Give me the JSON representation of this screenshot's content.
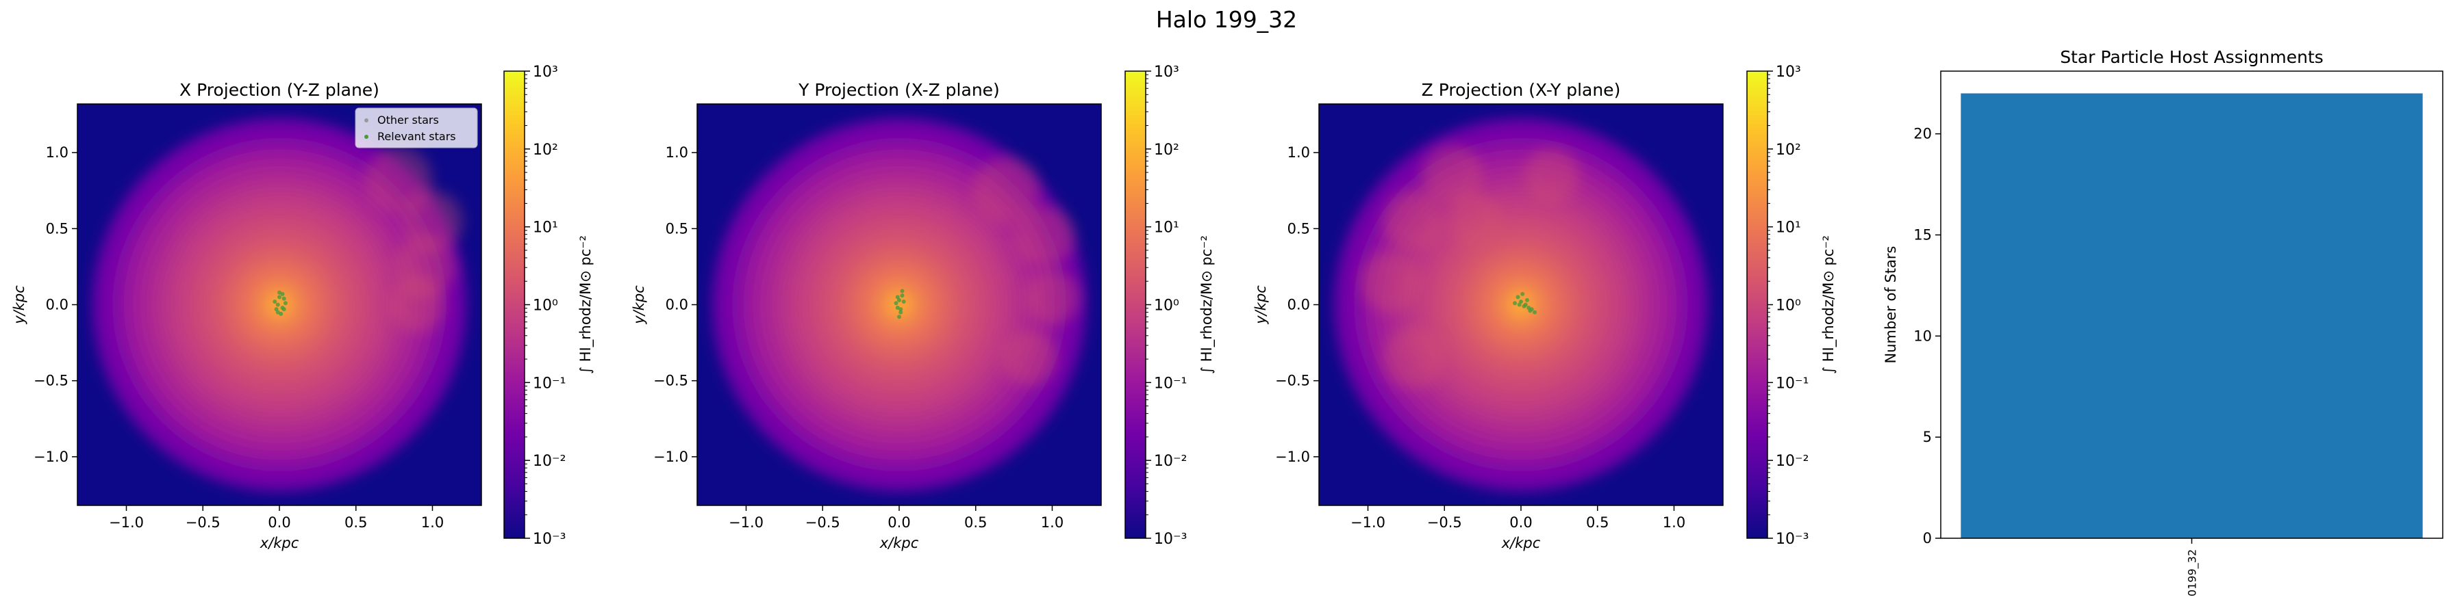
{
  "figure": {
    "suptitle": "Halo 199_32"
  },
  "colors": {
    "bar": "#1f77b4",
    "stars_relevant": "#4a9a3a",
    "stars_other": "#9a9a9a",
    "plasma": [
      "#0d0887",
      "#46039f",
      "#7201a8",
      "#9c179e",
      "#bd3786",
      "#d8576b",
      "#ed7953",
      "#fb9f3a",
      "#fdca26",
      "#f0f921"
    ]
  },
  "chart_data": [
    {
      "type": "heatmap",
      "title": "X Projection (Y-Z plane)",
      "xlabel": "x/kpc",
      "ylabel": "y/kpc",
      "xlim": [
        -1.32,
        1.32
      ],
      "ylim": [
        -1.32,
        1.32
      ],
      "xticks": [
        -1.0,
        -0.5,
        0.0,
        0.5,
        1.0
      ],
      "xtick_labels": [
        "−1.0",
        "−0.5",
        "0.0",
        "0.5",
        "1.0"
      ],
      "yticks": [
        -1.0,
        -0.5,
        0.0,
        0.5,
        1.0
      ],
      "ytick_labels": [
        "−1.0",
        "−0.5",
        "0.0",
        "0.5",
        "1.0"
      ],
      "colorbar": {
        "label": "∫ HI_rhodz/M⊙ pc⁻²",
        "scale": "log",
        "range": [
          0.001,
          1000
        ],
        "ticks": [
          0.001,
          0.01,
          0.1,
          1,
          10,
          100,
          1000
        ],
        "tick_labels": [
          "10⁻³",
          "10⁻²",
          "10⁻¹",
          "10⁰",
          "10¹",
          "10²",
          "10³"
        ]
      },
      "legend": {
        "placement": "upper-right",
        "entries": [
          "Other stars",
          "Relevant stars"
        ]
      },
      "stars": [
        [
          0.0,
          0.05
        ],
        [
          0.02,
          -0.02
        ],
        [
          -0.01,
          0.0
        ],
        [
          0.03,
          0.04
        ],
        [
          -0.02,
          -0.03
        ],
        [
          0.01,
          -0.06
        ],
        [
          0.0,
          0.08
        ],
        [
          0.04,
          0.01
        ],
        [
          -0.03,
          0.02
        ],
        [
          0.02,
          0.07
        ],
        [
          -0.01,
          -0.05
        ],
        [
          0.03,
          -0.03
        ]
      ]
    },
    {
      "type": "heatmap",
      "title": "Y Projection (X-Z plane)",
      "xlabel": "x/kpc",
      "ylabel": "y/kpc",
      "xlim": [
        -1.32,
        1.32
      ],
      "ylim": [
        -1.32,
        1.32
      ],
      "xticks": [
        -1.0,
        -0.5,
        0.0,
        0.5,
        1.0
      ],
      "xtick_labels": [
        "−1.0",
        "−0.5",
        "0.0",
        "0.5",
        "1.0"
      ],
      "yticks": [
        -1.0,
        -0.5,
        0.0,
        0.5,
        1.0
      ],
      "ytick_labels": [
        "−1.0",
        "−0.5",
        "0.0",
        "0.5",
        "1.0"
      ],
      "colorbar": {
        "label": "∫ HI_rhodz/M⊙ pc⁻²",
        "scale": "log",
        "range": [
          0.001,
          1000
        ],
        "ticks": [
          0.001,
          0.01,
          0.1,
          1,
          10,
          100,
          1000
        ],
        "tick_labels": [
          "10⁻³",
          "10⁻²",
          "10⁻¹",
          "10⁰",
          "10¹",
          "10²",
          "10³"
        ]
      },
      "stars": [
        [
          0.0,
          0.03
        ],
        [
          0.02,
          0.06
        ],
        [
          -0.01,
          -0.02
        ],
        [
          0.01,
          -0.05
        ],
        [
          0.03,
          0.02
        ],
        [
          -0.02,
          0.01
        ],
        [
          0.0,
          -0.08
        ],
        [
          0.02,
          0.09
        ],
        [
          -0.01,
          0.05
        ],
        [
          0.01,
          -0.03
        ]
      ]
    },
    {
      "type": "heatmap",
      "title": "Z Projection (X-Y plane)",
      "xlabel": "x/kpc",
      "ylabel": "y/kpc",
      "xlim": [
        -1.32,
        1.32
      ],
      "ylim": [
        -1.32,
        1.32
      ],
      "xticks": [
        -1.0,
        -0.5,
        0.0,
        0.5,
        1.0
      ],
      "xtick_labels": [
        "−1.0",
        "−0.5",
        "0.0",
        "0.5",
        "1.0"
      ],
      "yticks": [
        -1.0,
        -0.5,
        0.0,
        0.5,
        1.0
      ],
      "ytick_labels": [
        "−1.0",
        "−0.5",
        "0.0",
        "0.5",
        "1.0"
      ],
      "colorbar": {
        "label": "∫ HI_rhodz/M⊙ pc⁻²",
        "scale": "log",
        "range": [
          0.001,
          1000
        ],
        "ticks": [
          0.001,
          0.01,
          0.1,
          1,
          10,
          100,
          1000
        ],
        "tick_labels": [
          "10⁻³",
          "10⁻²",
          "10⁻¹",
          "10⁰",
          "10¹",
          "10²",
          "10³"
        ]
      },
      "stars": [
        [
          -0.02,
          0.05
        ],
        [
          0.0,
          0.02
        ],
        [
          0.03,
          0.0
        ],
        [
          0.05,
          -0.02
        ],
        [
          0.07,
          -0.03
        ],
        [
          0.09,
          -0.05
        ],
        [
          -0.04,
          0.01
        ],
        [
          0.01,
          0.07
        ],
        [
          0.04,
          0.03
        ],
        [
          0.06,
          -0.04
        ],
        [
          -0.01,
          0.0
        ],
        [
          0.02,
          -0.01
        ]
      ]
    },
    {
      "type": "bar",
      "title": "Star Particle Host Assignments",
      "xlabel": "",
      "ylabel": "Number of Stars",
      "categories": [
        "0199_32"
      ],
      "values": [
        22
      ],
      "ylim": [
        0,
        23.1
      ],
      "yticks": [
        0,
        5,
        10,
        15,
        20
      ],
      "ytick_labels": [
        "0",
        "5",
        "10",
        "15",
        "20"
      ],
      "grid": false
    }
  ]
}
